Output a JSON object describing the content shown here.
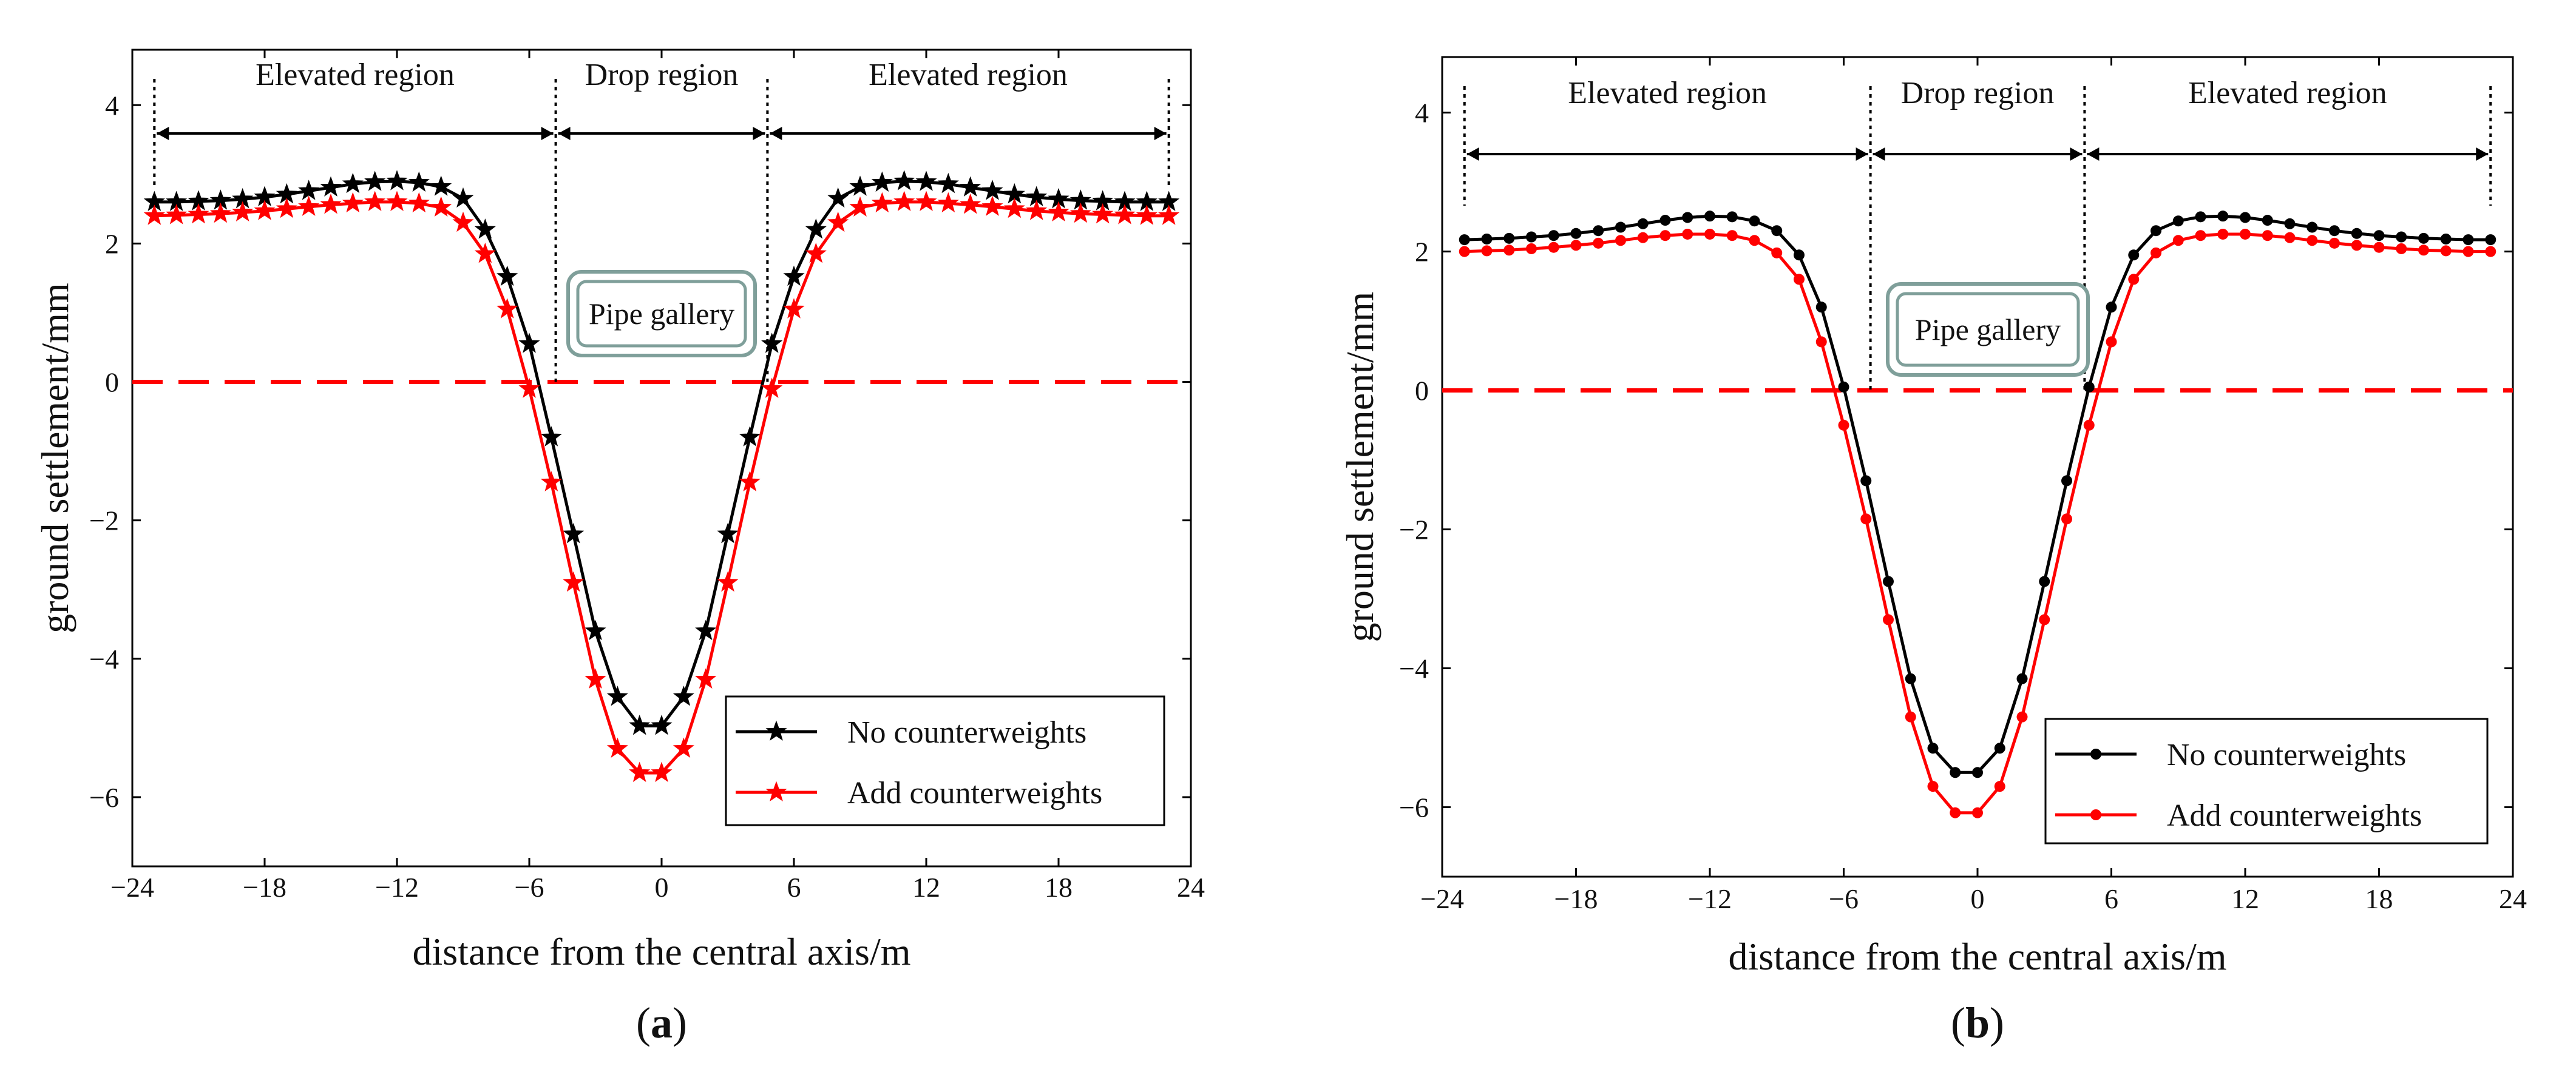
{
  "figure": {
    "colors": {
      "no_counterweights": "#000000",
      "add_counterweights": "#ff0000",
      "zero_line": "#ff0000",
      "pipe_box": "#7f9f9a",
      "axis": "#000000"
    }
  },
  "chart_data": [
    {
      "type": "line",
      "panel_label_open": "(",
      "panel_label_letter": "a",
      "panel_label_close": ")",
      "xlabel": "distance from the central axis/m",
      "ylabel": "ground settlement/mm",
      "xlim": [
        -24,
        24
      ],
      "ylim": [
        -7,
        4.8
      ],
      "xticks": [
        -24,
        -18,
        -12,
        -6,
        0,
        6,
        12,
        18,
        24
      ],
      "yticks": [
        -6,
        -4,
        -2,
        0,
        2,
        4
      ],
      "marker": "star",
      "zero_line": 0,
      "regions": [
        {
          "label": "Elevated region",
          "from": -23,
          "to": -4.8
        },
        {
          "label": "Drop region",
          "from": -4.8,
          "to": 4.8
        },
        {
          "label": "Elevated region",
          "from": 4.8,
          "to": 23
        }
      ],
      "boundaries": [
        -23,
        -4.8,
        4.8,
        23
      ],
      "annotation": "Pipe gallery",
      "legend": [
        "No counterweights",
        "Add counterweights"
      ],
      "legend_position": "bottom-right",
      "x": [
        -23,
        -22,
        -21,
        -20,
        -19,
        -18,
        -17,
        -16,
        -15,
        -14,
        -13,
        -12,
        -11,
        -10,
        -9,
        -8,
        -7,
        -6,
        -5,
        -4,
        -3,
        -2,
        -1,
        0,
        1,
        2,
        3,
        4,
        5,
        6,
        7,
        8,
        9,
        10,
        11,
        12,
        13,
        14,
        15,
        16,
        17,
        18,
        19,
        20,
        21,
        22,
        23
      ],
      "series": [
        {
          "name": "No counterweights",
          "values": [
            2.6,
            2.6,
            2.61,
            2.62,
            2.64,
            2.67,
            2.71,
            2.76,
            2.81,
            2.86,
            2.89,
            2.9,
            2.88,
            2.82,
            2.65,
            2.2,
            1.52,
            0.55,
            -0.8,
            -2.2,
            -3.6,
            -4.55,
            -4.97,
            -4.97,
            -4.55,
            -3.6,
            -2.2,
            -0.8,
            0.55,
            1.52,
            2.2,
            2.65,
            2.82,
            2.88,
            2.9,
            2.89,
            2.86,
            2.81,
            2.76,
            2.71,
            2.67,
            2.64,
            2.62,
            2.61,
            2.6,
            2.6,
            2.6
          ]
        },
        {
          "name": "Add counterweights",
          "values": [
            2.4,
            2.41,
            2.42,
            2.43,
            2.45,
            2.47,
            2.5,
            2.53,
            2.56,
            2.58,
            2.6,
            2.6,
            2.58,
            2.52,
            2.3,
            1.85,
            1.05,
            -0.1,
            -1.45,
            -2.9,
            -4.3,
            -5.3,
            -5.65,
            -5.65,
            -5.3,
            -4.3,
            -2.9,
            -1.45,
            -0.1,
            1.05,
            1.85,
            2.3,
            2.52,
            2.58,
            2.6,
            2.6,
            2.58,
            2.56,
            2.53,
            2.5,
            2.47,
            2.45,
            2.43,
            2.42,
            2.41,
            2.4,
            2.4
          ]
        }
      ]
    },
    {
      "type": "line",
      "panel_label_open": "(",
      "panel_label_letter": "b",
      "panel_label_close": ")",
      "xlabel": "distance from the central axis/m",
      "ylabel": "ground settlement/mm",
      "xlim": [
        -24,
        24
      ],
      "ylim": [
        -7,
        4.8
      ],
      "xticks": [
        -24,
        -18,
        -12,
        -6,
        0,
        6,
        12,
        18,
        24
      ],
      "yticks": [
        -6,
        -4,
        -2,
        0,
        2,
        4
      ],
      "marker": "circle",
      "zero_line": 0,
      "regions": [
        {
          "label": "Elevated region",
          "from": -23,
          "to": -4.8
        },
        {
          "label": "Drop region",
          "from": -4.8,
          "to": 4.8
        },
        {
          "label": "Elevated region",
          "from": 4.8,
          "to": 23
        }
      ],
      "boundaries": [
        -23,
        -4.8,
        4.8,
        23
      ],
      "annotation": "Pipe gallery",
      "legend": [
        "No counterweights",
        "Add counterweights"
      ],
      "legend_position": "bottom-right",
      "x": [
        -23,
        -22,
        -21,
        -20,
        -19,
        -18,
        -17,
        -16,
        -15,
        -14,
        -13,
        -12,
        -11,
        -10,
        -9,
        -8,
        -7,
        -6,
        -5,
        -4,
        -3,
        -2,
        -1,
        0,
        1,
        2,
        3,
        4,
        5,
        6,
        7,
        8,
        9,
        10,
        11,
        12,
        13,
        14,
        15,
        16,
        17,
        18,
        19,
        20,
        21,
        22,
        23
      ],
      "series": [
        {
          "name": "No counterweights",
          "values": [
            2.17,
            2.18,
            2.19,
            2.21,
            2.23,
            2.26,
            2.3,
            2.35,
            2.4,
            2.45,
            2.49,
            2.51,
            2.5,
            2.44,
            2.3,
            1.95,
            1.2,
            0.05,
            -1.3,
            -2.75,
            -4.15,
            -5.15,
            -5.5,
            -5.5,
            -5.15,
            -4.15,
            -2.75,
            -1.3,
            0.05,
            1.2,
            1.95,
            2.3,
            2.44,
            2.5,
            2.51,
            2.49,
            2.45,
            2.4,
            2.35,
            2.3,
            2.26,
            2.23,
            2.21,
            2.19,
            2.18,
            2.17,
            2.17
          ]
        },
        {
          "name": "Add counterweights",
          "values": [
            2.0,
            2.01,
            2.02,
            2.04,
            2.06,
            2.09,
            2.12,
            2.16,
            2.2,
            2.23,
            2.25,
            2.25,
            2.23,
            2.16,
            1.98,
            1.6,
            0.7,
            -0.5,
            -1.85,
            -3.3,
            -4.7,
            -5.7,
            -6.08,
            -6.08,
            -5.7,
            -4.7,
            -3.3,
            -1.85,
            -0.5,
            0.7,
            1.6,
            1.98,
            2.16,
            2.23,
            2.25,
            2.25,
            2.23,
            2.2,
            2.16,
            2.12,
            2.09,
            2.06,
            2.04,
            2.02,
            2.01,
            2.0,
            2.0
          ]
        }
      ]
    }
  ]
}
